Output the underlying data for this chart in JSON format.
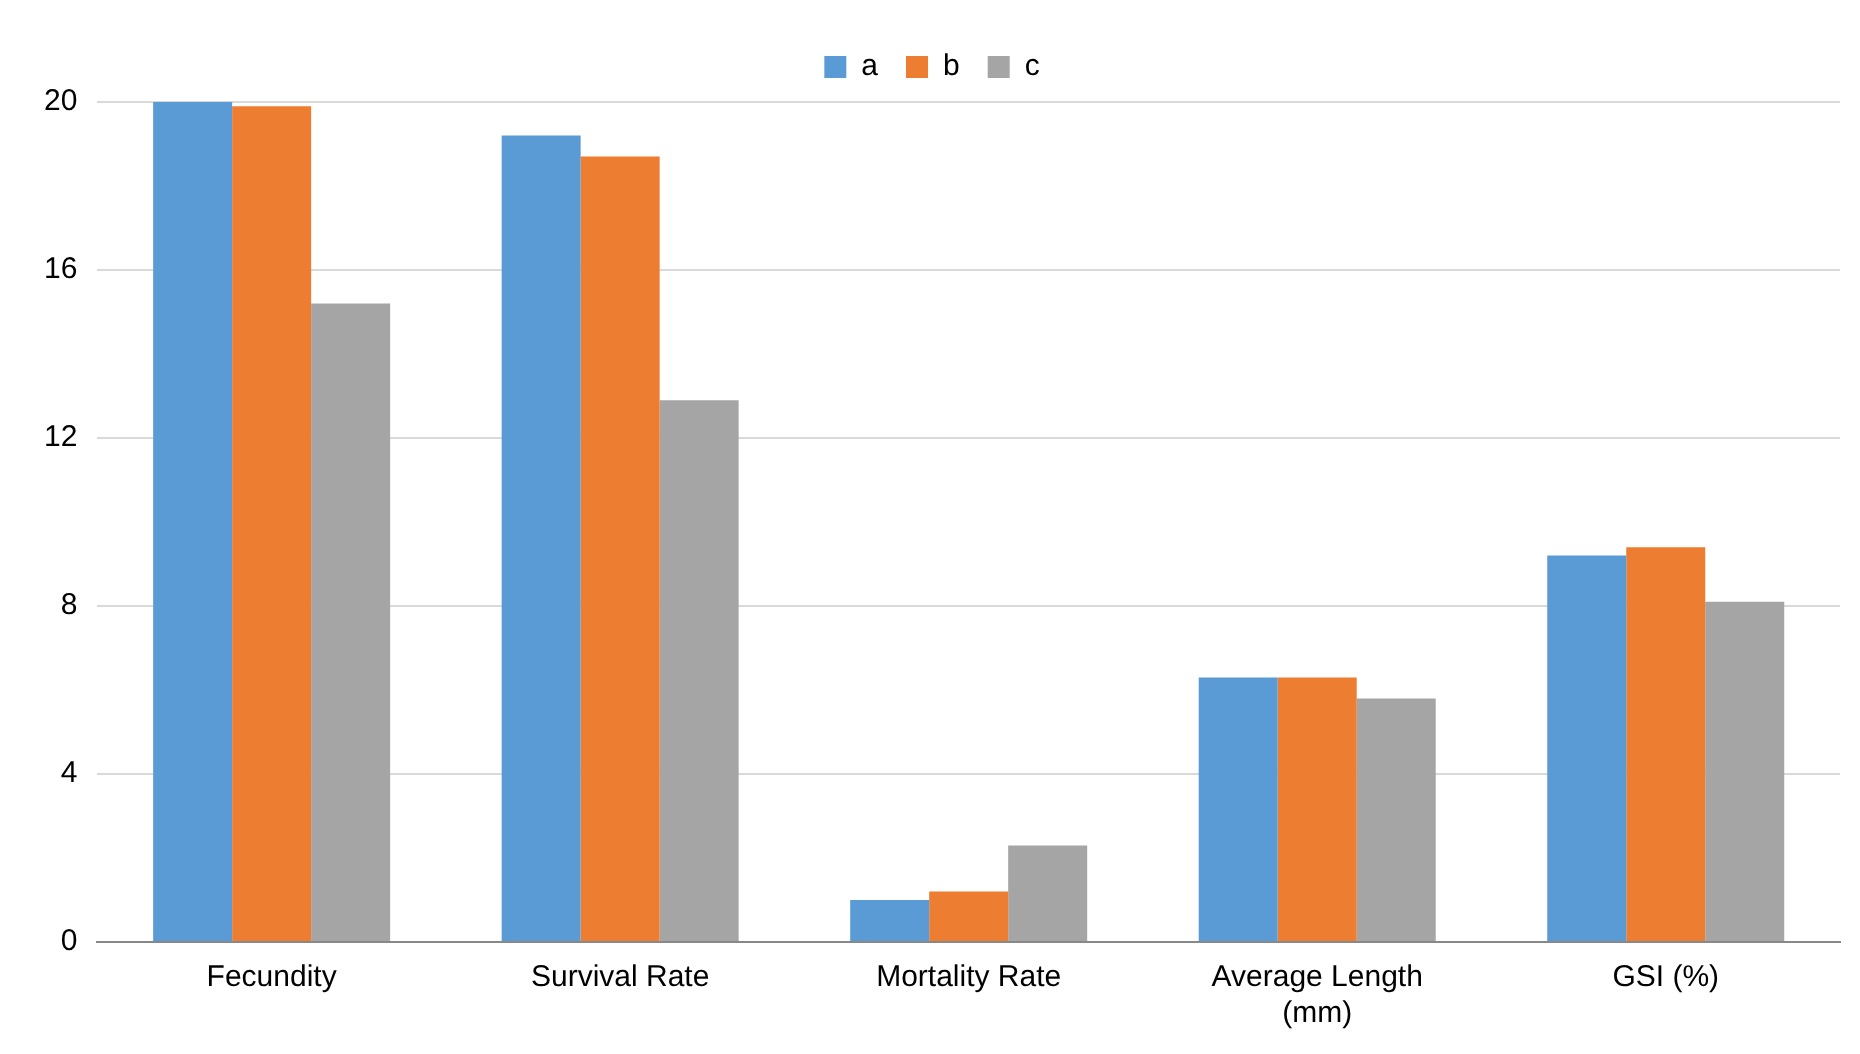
{
  "chart_data": {
    "type": "bar",
    "categories": [
      "Fecundity",
      "Survival Rate",
      "Mortality Rate",
      "Average Length (mm)",
      "GSI (%)"
    ],
    "series": [
      {
        "name": "a",
        "color": "#5b9bd5",
        "values": [
          20,
          19.2,
          1.0,
          6.3,
          9.2
        ]
      },
      {
        "name": "b",
        "color": "#ed7d31",
        "values": [
          19.9,
          18.7,
          1.2,
          6.3,
          9.4
        ]
      },
      {
        "name": "c",
        "color": "#a5a5a5",
        "values": [
          15.2,
          12.9,
          2.3,
          5.8,
          8.1
        ]
      }
    ],
    "ylim": [
      0,
      20
    ],
    "yticks": [
      0,
      4,
      8,
      12,
      16,
      20
    ],
    "grid": "y",
    "legend": "top"
  }
}
